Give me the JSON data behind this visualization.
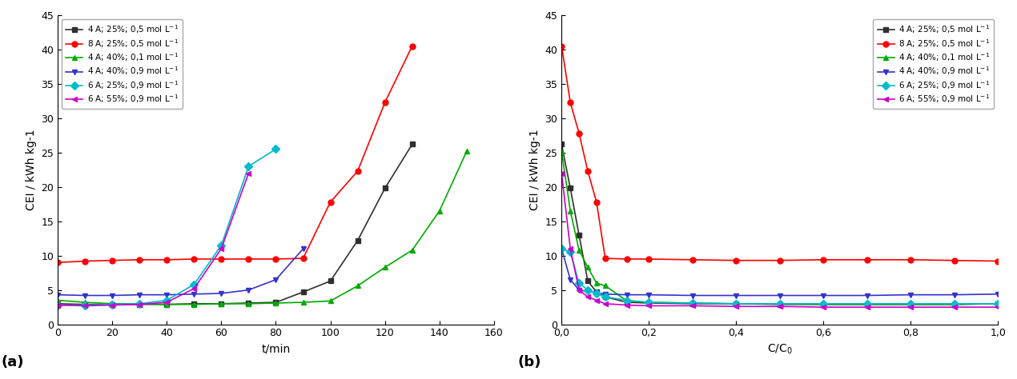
{
  "series_labels_latex": [
    "4 A; 25%; 0,5 mol L$^{-1}$",
    "8 A; 25%; 0,5 mol L$^{-1}$",
    "4 A; 40%; 0,1 mol L$^{-1}$",
    "4 A; 40%; 0,9 mol L$^{-1}$",
    "6 A; 25%; 0,9 mol L$^{-1}$",
    "6 A; 55%; 0,9 mol L$^{-1}$"
  ],
  "colors": [
    "#303030",
    "#ff0000",
    "#00aa00",
    "#3333cc",
    "#00bbcc",
    "#cc00cc"
  ],
  "markers": [
    "s",
    "o",
    "^",
    "v",
    "D",
    "<"
  ],
  "markersize": 5,
  "linewidth": 1.2,
  "plot_a": {
    "series": [
      {
        "t": [
          0,
          10,
          20,
          30,
          40,
          50,
          60,
          70,
          80,
          90,
          100,
          110,
          120,
          130
        ],
        "y": [
          3.0,
          2.9,
          2.9,
          2.9,
          2.9,
          3.0,
          3.0,
          3.1,
          3.2,
          4.7,
          6.3,
          12.2,
          19.8,
          26.2
        ]
      },
      {
        "t": [
          0,
          10,
          20,
          30,
          40,
          50,
          60,
          70,
          80,
          90,
          100,
          110,
          120,
          130
        ],
        "y": [
          9.0,
          9.2,
          9.3,
          9.4,
          9.4,
          9.5,
          9.5,
          9.5,
          9.5,
          9.6,
          17.8,
          22.3,
          32.3,
          40.5
        ]
      },
      {
        "t": [
          0,
          10,
          20,
          30,
          40,
          50,
          60,
          70,
          80,
          90,
          100,
          110,
          120,
          130,
          140,
          150
        ],
        "y": [
          3.5,
          3.2,
          3.0,
          3.0,
          2.9,
          2.9,
          3.0,
          3.0,
          3.1,
          3.2,
          3.4,
          5.6,
          8.3,
          10.8,
          16.5,
          25.2
        ]
      },
      {
        "t": [
          0,
          10,
          20,
          30,
          40,
          50,
          60,
          70,
          80,
          90
        ],
        "y": [
          4.3,
          4.2,
          4.2,
          4.3,
          4.3,
          4.4,
          4.5,
          5.0,
          6.5,
          11.0
        ]
      },
      {
        "t": [
          0,
          10,
          20,
          30,
          40,
          50,
          60,
          70,
          80
        ],
        "y": [
          2.8,
          2.8,
          2.9,
          3.0,
          3.5,
          5.8,
          11.5,
          23.0,
          25.5
        ]
      },
      {
        "t": [
          0,
          10,
          20,
          30,
          40,
          50,
          60,
          70
        ],
        "y": [
          2.8,
          2.7,
          2.8,
          2.9,
          3.2,
          5.2,
          11.0,
          22.0
        ]
      }
    ],
    "xlabel": "t/min",
    "ylabel": "CEI / kWh kg-1",
    "xlim": [
      0,
      160
    ],
    "ylim": [
      0,
      45
    ],
    "xticks": [
      0,
      20,
      40,
      60,
      80,
      100,
      120,
      140,
      160
    ],
    "yticks": [
      0,
      5,
      10,
      15,
      20,
      25,
      30,
      35,
      40,
      45
    ]
  },
  "plot_b": {
    "series": [
      {
        "x": [
          0.0,
          0.02,
          0.04,
          0.06,
          0.08,
          0.1,
          0.15,
          0.2,
          0.3,
          0.4,
          0.5,
          0.6,
          0.7,
          0.8,
          0.9,
          1.0
        ],
        "y": [
          26.2,
          19.8,
          13.0,
          6.3,
          4.7,
          4.0,
          3.2,
          3.1,
          3.0,
          3.0,
          2.9,
          2.9,
          2.9,
          2.9,
          2.9,
          3.0
        ]
      },
      {
        "x": [
          0.0,
          0.02,
          0.04,
          0.06,
          0.08,
          0.1,
          0.15,
          0.2,
          0.3,
          0.4,
          0.5,
          0.6,
          0.7,
          0.8,
          0.9,
          1.0
        ],
        "y": [
          40.5,
          32.3,
          27.8,
          22.3,
          17.8,
          9.6,
          9.5,
          9.5,
          9.4,
          9.3,
          9.3,
          9.4,
          9.4,
          9.4,
          9.3,
          9.2
        ]
      },
      {
        "x": [
          0.0,
          0.02,
          0.04,
          0.06,
          0.08,
          0.1,
          0.15,
          0.2,
          0.3,
          0.4,
          0.5,
          0.6,
          0.7,
          0.8,
          0.9,
          1.0
        ],
        "y": [
          25.2,
          16.5,
          10.8,
          8.3,
          6.0,
          5.6,
          3.4,
          3.2,
          3.1,
          3.0,
          3.0,
          2.9,
          2.9,
          2.9,
          2.9,
          3.0
        ]
      },
      {
        "x": [
          0.0,
          0.02,
          0.04,
          0.06,
          0.08,
          0.1,
          0.15,
          0.2,
          0.3,
          0.4,
          0.5,
          0.6,
          0.7,
          0.8,
          0.9,
          1.0
        ],
        "y": [
          11.0,
          6.5,
          5.0,
          4.8,
          4.6,
          4.4,
          4.3,
          4.3,
          4.2,
          4.2,
          4.2,
          4.2,
          4.2,
          4.3,
          4.3,
          4.4
        ]
      },
      {
        "x": [
          0.0,
          0.02,
          0.04,
          0.06,
          0.08,
          0.1,
          0.15,
          0.2,
          0.3,
          0.4,
          0.5,
          0.6,
          0.7,
          0.8,
          0.9,
          1.0
        ],
        "y": [
          11.0,
          10.5,
          6.0,
          5.0,
          4.5,
          4.0,
          3.5,
          3.2,
          3.1,
          3.0,
          3.0,
          3.0,
          3.0,
          3.0,
          3.0,
          3.0
        ]
      },
      {
        "x": [
          0.0,
          0.02,
          0.04,
          0.06,
          0.08,
          0.1,
          0.15,
          0.2,
          0.3,
          0.4,
          0.5,
          0.6,
          0.7,
          0.8,
          0.9,
          1.0
        ],
        "y": [
          22.0,
          11.0,
          5.0,
          4.0,
          3.5,
          3.0,
          2.8,
          2.7,
          2.7,
          2.6,
          2.6,
          2.5,
          2.5,
          2.5,
          2.5,
          2.5
        ]
      }
    ],
    "xlabel": "C/C$_0$",
    "ylabel": "CEI / kWh kg-1",
    "xlim": [
      0,
      1.0
    ],
    "ylim": [
      0,
      45
    ],
    "xticks": [
      0.0,
      0.2,
      0.4,
      0.6,
      0.8,
      1.0
    ],
    "yticks": [
      0,
      5,
      10,
      15,
      20,
      25,
      30,
      35,
      40,
      45
    ]
  },
  "fig_bg": "#ffffff",
  "axes_bg": "#ffffff"
}
